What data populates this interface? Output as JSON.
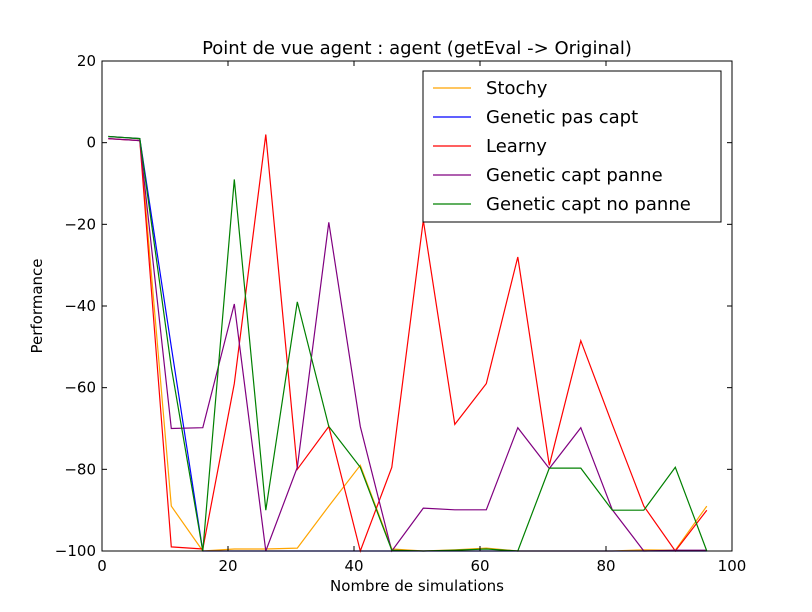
{
  "chart_data": {
    "type": "line",
    "title": "Point de vue agent : agent (getEval -> Original)",
    "xlabel": "Nombre de simulations",
    "ylabel": "Performance",
    "xlim": [
      0,
      100
    ],
    "ylim": [
      -100,
      20
    ],
    "xticks": [
      "0",
      "20",
      "40",
      "60",
      "80",
      "100"
    ],
    "yticks": [
      "20",
      "0",
      "−20",
      "−40",
      "−60",
      "−80",
      "−100"
    ],
    "grid": false,
    "legend_position": "top-right",
    "x": [
      1,
      6,
      11,
      16,
      21,
      26,
      31,
      36,
      41,
      46,
      51,
      56,
      61,
      66,
      71,
      76,
      81,
      86,
      91,
      96
    ],
    "series": [
      {
        "name": "Stochy",
        "color": "#ffa500",
        "values": [
          1.5,
          1,
          -89,
          -100,
          -99.5,
          -99.5,
          -99.3,
          -89,
          -79,
          -99.5,
          -100,
          -99.7,
          -99.3,
          -100,
          -100,
          -100,
          -100,
          -99.7,
          -99.8,
          -89
        ]
      },
      {
        "name": "Genetic pas capt",
        "color": "#0000ff",
        "values": [
          1.5,
          1,
          -50,
          -100,
          -100,
          -100,
          -100,
          -100,
          -100,
          -100,
          -100,
          -100,
          -100,
          -100,
          -100,
          -100,
          -100,
          -100,
          -100,
          -100
        ]
      },
      {
        "name": "Learny",
        "color": "#ff0000",
        "values": [
          1,
          0.5,
          -99,
          -99.5,
          -59,
          2,
          -80,
          -69.5,
          -100,
          -79.5,
          -19,
          -69,
          -59,
          -28,
          -79,
          -48.5,
          -69,
          -89,
          -100,
          -90
        ]
      },
      {
        "name": "Genetic capt panne",
        "color": "#800080",
        "values": [
          1,
          0.5,
          -70,
          -69.8,
          -39.5,
          -100,
          -79.5,
          -19.5,
          -69.5,
          -100,
          -89.5,
          -89.9,
          -89.9,
          -69.8,
          -79.8,
          -69.8,
          -89.9,
          -100,
          -99.8,
          -99.8
        ]
      },
      {
        "name": "Genetic capt no panne",
        "color": "#008000",
        "values": [
          1.5,
          1,
          -55,
          -100,
          -9,
          -90,
          -39,
          -69.5,
          -79.5,
          -99.8,
          -100,
          -99.8,
          -99.5,
          -100,
          -79.7,
          -79.7,
          -90,
          -90,
          -79.5,
          -100
        ]
      }
    ]
  }
}
